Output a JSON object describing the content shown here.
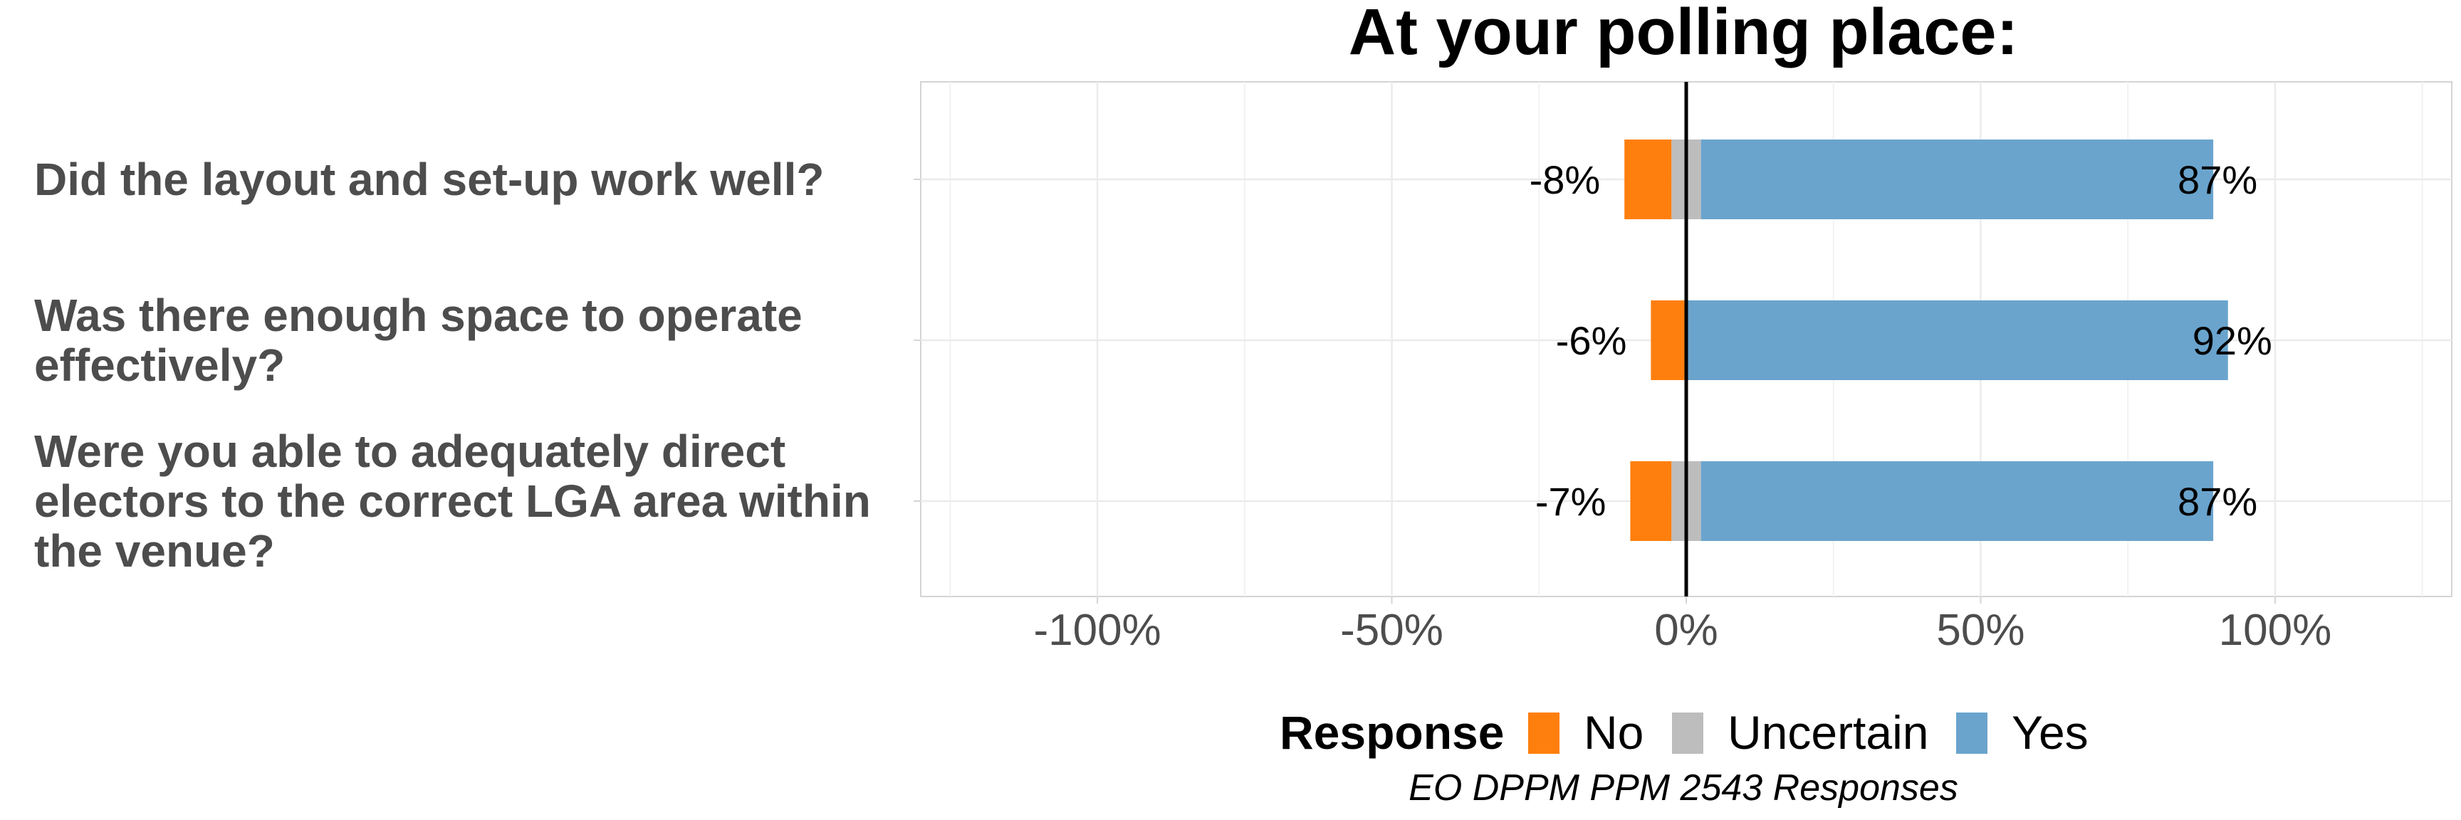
{
  "chart_data": {
    "type": "bar",
    "orientation": "horizontal",
    "stacked": "diverging",
    "title": "At your polling place:",
    "categories": [
      [
        "Did the layout and set-up work well?"
      ],
      [
        "Was there enough space to operate",
        "effectively?"
      ],
      [
        "Were you able to adequately direct",
        "electors to the correct LGA area within",
        "the venue?"
      ]
    ],
    "series": [
      {
        "name": "No",
        "color": "#ff7f0e",
        "values": [
          8,
          6,
          7
        ]
      },
      {
        "name": "Uncertain",
        "color": "#bdbdbd",
        "values": [
          5,
          0,
          5
        ]
      },
      {
        "name": "Yes",
        "color": "#6aa4cd",
        "values": [
          87,
          92,
          87
        ]
      }
    ],
    "data_labels": {
      "left": [
        "-8%",
        "-6%",
        "-7%"
      ],
      "right": [
        "87%",
        "92%",
        "87%"
      ]
    },
    "xlim": [
      -130,
      130
    ],
    "x_ticks": [
      -100,
      -50,
      0,
      50,
      100
    ],
    "x_tick_labels": [
      "-100%",
      "-50%",
      "0%",
      "50%",
      "100%"
    ],
    "grid": true,
    "legend": {
      "title": "Response",
      "position": "bottom",
      "items": [
        "No",
        "Uncertain",
        "Yes"
      ]
    },
    "caption": "EO DPPM PPM 2543 Responses"
  }
}
